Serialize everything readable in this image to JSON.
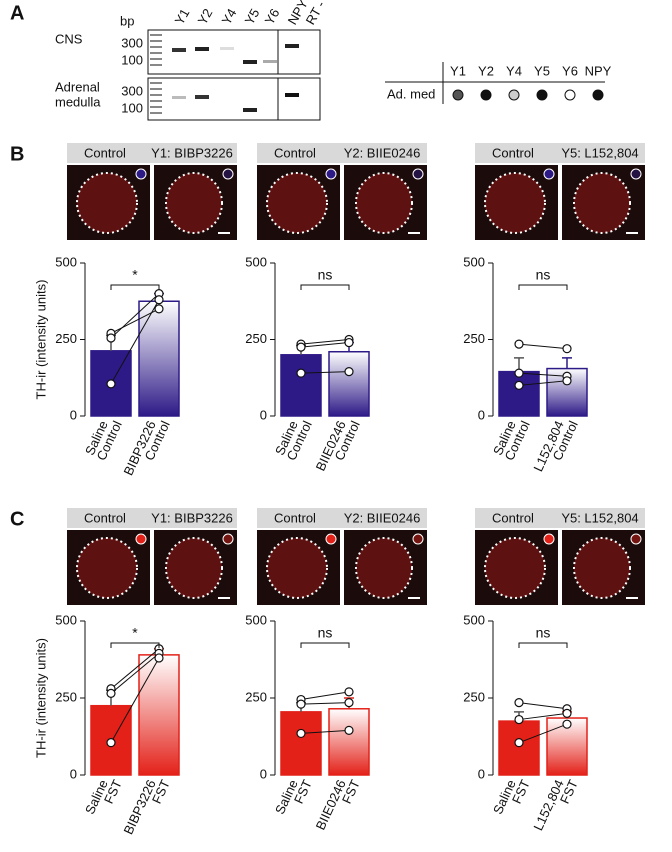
{
  "panel_labels": [
    "A",
    "B",
    "C"
  ],
  "panel_a": {
    "bp_label": "bp",
    "lanes": [
      "Y1",
      "Y2",
      "Y4",
      "Y5",
      "Y6",
      "NPY",
      "RT -"
    ],
    "gels": [
      {
        "label": [
          "CNS"
        ],
        "markers": [
          "300",
          "100"
        ]
      },
      {
        "label": [
          "Adrenal",
          "medulla"
        ],
        "markers": [
          "300",
          "100"
        ]
      }
    ],
    "table": {
      "columns": [
        "Y1",
        "Y2",
        "Y4",
        "Y5",
        "Y6",
        "NPY"
      ],
      "row_label": "Ad. med",
      "dot_colors": [
        "#555555",
        "#111111",
        "#cccccc",
        "#111111",
        "#ffffff",
        "#111111"
      ]
    }
  },
  "chart_data": [
    {
      "type": "bar",
      "ylabel": "TH-ir (intensity units)",
      "image_labels": [
        "Control",
        "Y1: BIBP3226"
      ],
      "categories": [
        [
          "Saline",
          "Control"
        ],
        [
          "BIBP3226",
          "Control"
        ]
      ],
      "values": [
        213,
        375
      ],
      "errors": [
        50,
        25
      ],
      "points": [
        [
          270,
          255,
          105
        ],
        [
          350,
          400,
          380
        ]
      ],
      "significance": "*",
      "color": "#2e1a87",
      "ylim": [
        0,
        500
      ],
      "yticks": [
        0,
        250,
        500
      ]
    },
    {
      "type": "bar",
      "image_labels": [
        "Control",
        "Y2: BIIE0246"
      ],
      "categories": [
        [
          "Saline",
          "Control"
        ],
        [
          "BIIE0246",
          "Control"
        ]
      ],
      "values": [
        200,
        210
      ],
      "errors": [
        30,
        30
      ],
      "points": [
        [
          235,
          225,
          140
        ],
        [
          250,
          240,
          145
        ]
      ],
      "significance": "ns",
      "color": "#2e1a87",
      "ylim": [
        0,
        500
      ],
      "yticks": [
        0,
        250,
        500
      ]
    },
    {
      "type": "bar",
      "image_labels": [
        "Control",
        "Y5: L152,804"
      ],
      "categories": [
        [
          "Saline",
          "Control"
        ],
        [
          "L152,804",
          "Control"
        ]
      ],
      "values": [
        145,
        155
      ],
      "errors": [
        45,
        35
      ],
      "points": [
        [
          235,
          140,
          100
        ],
        [
          220,
          130,
          115
        ]
      ],
      "significance": "ns",
      "color": "#2e1a87",
      "ylim": [
        0,
        500
      ],
      "yticks": [
        0,
        250,
        500
      ]
    },
    {
      "type": "bar",
      "ylabel": "TH-ir (intensity units)",
      "image_labels": [
        "Control",
        "Y1: BIBP3226"
      ],
      "categories": [
        [
          "Saline",
          "FST"
        ],
        [
          "BIBP3226",
          "FST"
        ]
      ],
      "values": [
        225,
        390
      ],
      "errors": [
        50,
        20
      ],
      "points": [
        [
          280,
          265,
          105
        ],
        [
          410,
          395,
          380
        ]
      ],
      "significance": "*",
      "color": "#e32119",
      "ylim": [
        0,
        500
      ],
      "yticks": [
        0,
        250,
        500
      ]
    },
    {
      "type": "bar",
      "image_labels": [
        "Control",
        "Y2: BIIE0246"
      ],
      "categories": [
        [
          "Saline",
          "FST"
        ],
        [
          "BIIE0246",
          "FST"
        ]
      ],
      "values": [
        205,
        215
      ],
      "errors": [
        30,
        35
      ],
      "points": [
        [
          245,
          230,
          135
        ],
        [
          270,
          235,
          145
        ]
      ],
      "significance": "ns",
      "color": "#e32119",
      "ylim": [
        0,
        500
      ],
      "yticks": [
        0,
        250,
        500
      ]
    },
    {
      "type": "bar",
      "image_labels": [
        "Control",
        "Y5: L152,804"
      ],
      "categories": [
        [
          "Saline",
          "FST"
        ],
        [
          "L152,804",
          "FST"
        ]
      ],
      "values": [
        175,
        185
      ],
      "errors": [
        30,
        20
      ],
      "points": [
        [
          235,
          180,
          105
        ],
        [
          215,
          200,
          165
        ]
      ],
      "significance": "ns",
      "color": "#e32119",
      "ylim": [
        0,
        500
      ],
      "yticks": [
        0,
        250,
        500
      ]
    }
  ]
}
